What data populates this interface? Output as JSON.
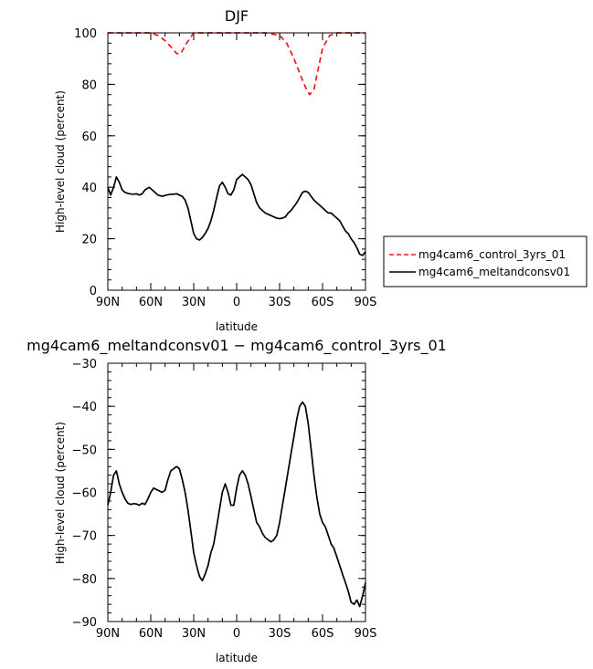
{
  "chart_data": [
    {
      "type": "line",
      "title": "DJF",
      "xlabel": "latitude",
      "ylabel": "High-level cloud (percent)",
      "xlim": [
        90,
        -90
      ],
      "ylim": [
        0,
        100
      ],
      "x_ticks": [
        90,
        60,
        30,
        0,
        -30,
        -60,
        -90
      ],
      "x_tick_labels": [
        "90N",
        "60N",
        "30N",
        "0",
        "30S",
        "60S",
        "90S"
      ],
      "y_ticks": [
        0,
        20,
        40,
        60,
        80,
        100
      ],
      "y_tick_labels": [
        "0",
        "20",
        "40",
        "60",
        "80",
        "100"
      ],
      "legend": [
        "mg4cam6_control_3yrs_01",
        "mg4cam6_meltandconsv01"
      ],
      "legend_position": "right",
      "series": [
        {
          "name": "mg4cam6_control_3yrs_01",
          "color": "#e8191c",
          "dash": "dashed",
          "x": [
            90,
            80,
            70,
            60,
            55,
            50,
            45,
            42,
            39,
            35,
            30,
            20,
            10,
            0,
            -10,
            -20,
            -30,
            -35,
            -40,
            -45,
            -48,
            -51,
            -54,
            -57,
            -60,
            -65,
            -70,
            -80,
            -90
          ],
          "values": [
            100,
            100,
            100,
            100,
            99,
            97,
            94,
            92,
            92,
            96,
            100,
            100,
            100,
            100,
            100,
            100,
            99,
            96,
            90,
            83,
            79,
            76,
            78,
            86,
            94,
            99,
            100,
            100,
            100
          ]
        },
        {
          "name": "mg4cam6_meltandconsv01",
          "color": "#000000",
          "dash": "solid",
          "x": [
            90,
            88,
            86,
            84,
            82,
            80,
            78,
            75,
            72,
            70,
            68,
            66,
            64,
            61,
            58,
            55,
            52,
            49,
            46,
            44,
            42,
            40,
            38,
            36,
            34,
            32,
            30,
            28,
            26,
            24,
            22,
            20,
            18,
            16,
            14,
            12,
            10,
            8,
            6,
            4,
            2,
            0,
            -2,
            -4,
            -6,
            -8,
            -10,
            -12,
            -14,
            -16,
            -18,
            -20,
            -22,
            -24,
            -26,
            -28,
            -30,
            -32,
            -34,
            -36,
            -38,
            -40,
            -42,
            -44,
            -46,
            -48,
            -50,
            -52,
            -54,
            -56,
            -58,
            -60,
            -62,
            -64,
            -66,
            -68,
            -70,
            -72,
            -74,
            -76,
            -78,
            -80,
            -82,
            -84,
            -86,
            -88,
            -90
          ],
          "values": [
            40,
            37,
            40,
            44,
            42,
            39,
            38,
            37.5,
            37.3,
            37.5,
            37,
            37.5,
            39,
            40,
            38.5,
            37,
            36.5,
            37,
            37.3,
            37.3,
            37.5,
            37,
            36.5,
            35,
            32,
            27,
            22,
            20,
            19.5,
            20.5,
            22,
            24,
            27,
            31,
            36,
            40.5,
            42,
            40,
            37.5,
            37,
            39,
            43,
            44,
            45,
            44,
            43,
            41,
            37.5,
            34,
            32,
            31,
            30,
            29.5,
            29,
            28.5,
            28,
            27.8,
            28,
            28.5,
            30,
            31,
            32.5,
            34,
            36,
            38,
            38.5,
            38,
            36.5,
            35,
            34,
            33,
            32,
            31,
            30,
            30,
            29,
            28,
            27,
            25,
            23,
            22,
            20,
            18.5,
            16.5,
            14,
            13.5,
            15
          ]
        }
      ]
    },
    {
      "type": "line",
      "title": "mg4cam6_meltandconsv01  −  mg4cam6_control_3yrs_01",
      "xlabel": "latitude",
      "ylabel": "High-level cloud (percent)",
      "xlim": [
        90,
        -90
      ],
      "ylim": [
        -90,
        -30
      ],
      "x_ticks": [
        90,
        60,
        30,
        0,
        -30,
        -60,
        -90
      ],
      "x_tick_labels": [
        "90N",
        "60N",
        "30N",
        "0",
        "30S",
        "60S",
        "90S"
      ],
      "y_ticks": [
        -90,
        -80,
        -70,
        -60,
        -50,
        -40,
        -30
      ],
      "y_tick_labels": [
        "−90",
        "−80",
        "−70",
        "−60",
        "−50",
        "−40",
        "−30"
      ],
      "series": [
        {
          "color": "#000000",
          "dash": "solid",
          "x": [
            90,
            88,
            86,
            84,
            82,
            80,
            78,
            76,
            74,
            72,
            70,
            68,
            66,
            64,
            62,
            60,
            58,
            55,
            52,
            50,
            48,
            46,
            44,
            42,
            40,
            38,
            36,
            34,
            32,
            30,
            28,
            26,
            24,
            22,
            20,
            18,
            16,
            14,
            12,
            10,
            8,
            6,
            4,
            2,
            0,
            -2,
            -4,
            -6,
            -8,
            -10,
            -12,
            -14,
            -16,
            -18,
            -20,
            -22,
            -24,
            -26,
            -28,
            -30,
            -32,
            -34,
            -36,
            -38,
            -40,
            -42,
            -44,
            -46,
            -48,
            -50,
            -52,
            -54,
            -56,
            -58,
            -60,
            -62,
            -64,
            -66,
            -68,
            -70,
            -72,
            -74,
            -76,
            -78,
            -80,
            -82,
            -84,
            -86,
            -88,
            -90
          ],
          "values": [
            -63,
            -60,
            -56,
            -55,
            -58,
            -60,
            -61.5,
            -62.5,
            -62.8,
            -62.6,
            -62.7,
            -63,
            -62.5,
            -62.8,
            -61.5,
            -60,
            -59,
            -59.5,
            -60,
            -59.5,
            -57,
            -55,
            -54.5,
            -54,
            -54.5,
            -57,
            -60,
            -64,
            -69,
            -74,
            -77,
            -79.5,
            -80.5,
            -79,
            -77,
            -74,
            -72,
            -68,
            -64,
            -60,
            -58,
            -60,
            -63,
            -63,
            -59,
            -56,
            -55,
            -56,
            -58,
            -61,
            -64,
            -67,
            -68,
            -69.5,
            -70.5,
            -71,
            -71.5,
            -71,
            -70,
            -67,
            -63,
            -59,
            -55,
            -51,
            -47,
            -43,
            -40,
            -39,
            -40,
            -44,
            -50,
            -56,
            -61,
            -65,
            -67,
            -68,
            -70,
            -72,
            -73,
            -75,
            -77,
            -79,
            -81,
            -83,
            -85.5,
            -86,
            -85,
            -86.5,
            -84,
            -81
          ]
        }
      ]
    }
  ]
}
